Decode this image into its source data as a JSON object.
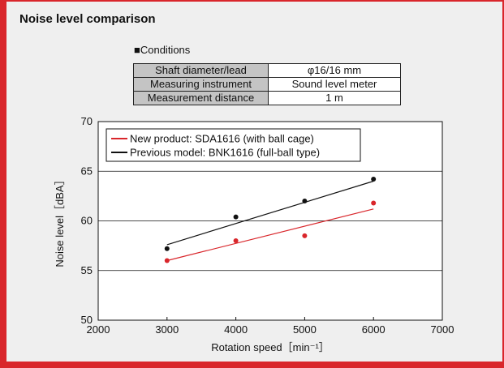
{
  "title": "Noise level comparison",
  "conditions": {
    "label": "■Conditions",
    "rows": [
      {
        "key": "Shaft diameter/lead",
        "value": "φ16/16 mm"
      },
      {
        "key": "Measuring instrument",
        "value": "Sound level meter"
      },
      {
        "key": "Measurement distance",
        "value": "1 m"
      }
    ]
  },
  "chart_data": {
    "type": "scatter",
    "xlabel": "Rotation speed［min⁻¹］",
    "ylabel": "Noise level［dBA］",
    "xlim": [
      2000,
      7000
    ],
    "ylim": [
      50,
      70
    ],
    "xticks": [
      "2000",
      "3000",
      "4000",
      "5000",
      "6000",
      "7000"
    ],
    "yticks": [
      "50",
      "55",
      "60",
      "65",
      "70"
    ],
    "grid": "horizontal",
    "legend_position": "top-left",
    "series": [
      {
        "name": "New product: SDA1616 (with ball cage)",
        "color": "#d9262b",
        "x": [
          3000,
          4000,
          5000,
          6000
        ],
        "y": [
          56.0,
          58.0,
          58.5,
          61.8
        ],
        "trend": {
          "x": [
            3000,
            6000
          ],
          "y": [
            56.0,
            61.2
          ]
        }
      },
      {
        "name": "Previous model: BNK1616 (full-ball type)",
        "color": "#111111",
        "x": [
          3000,
          4000,
          5000,
          6000
        ],
        "y": [
          57.2,
          60.4,
          62.0,
          64.2
        ],
        "trend": {
          "x": [
            3000,
            6000
          ],
          "y": [
            57.6,
            64.0
          ]
        }
      }
    ]
  }
}
